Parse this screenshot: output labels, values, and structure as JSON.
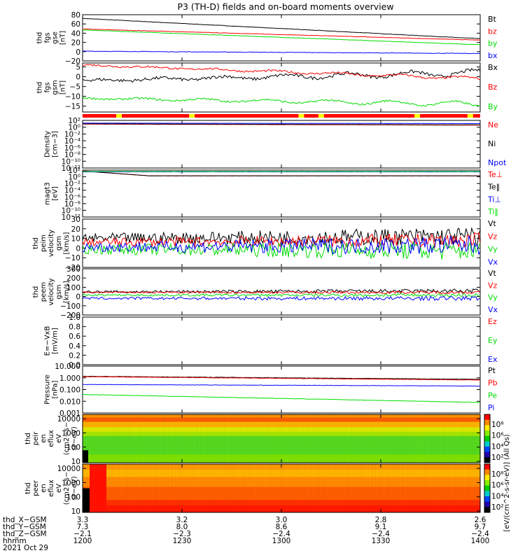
{
  "title": "P3 (TH-D) fields and on-board moments overview",
  "chart_data": [
    {
      "type": "line",
      "ylabel": [
        "thd",
        "fgs",
        "gse",
        "[nT]"
      ],
      "ylim": [
        -20,
        80
      ],
      "yticks": [
        {
          "v": 80,
          "label": "80"
        },
        {
          "v": 60,
          "label": "60"
        },
        {
          "v": 40,
          "label": "40"
        },
        {
          "v": 20,
          "label": "20"
        },
        {
          "v": 0,
          "label": "0"
        },
        {
          "v": -20,
          "label": "−20"
        }
      ],
      "series": [
        {
          "name": "Bt",
          "color": "#000000",
          "start": 72,
          "end": 28,
          "noise": 0.4
        },
        {
          "name": "bz",
          "color": "#ff0000",
          "start": 49,
          "end": 25,
          "noise": 0.4
        },
        {
          "name": "by",
          "color": "#00dd00",
          "start": 47,
          "end": 15,
          "noise": 0.4
        },
        {
          "name": "bx",
          "color": "#0000ff",
          "start": 1,
          "end": -4,
          "noise": 0.5
        }
      ]
    },
    {
      "type": "line",
      "ylabel": [
        "thd",
        "fgs",
        "gsm",
        "[nT]"
      ],
      "ylim": [
        -18,
        7
      ],
      "yticks": [
        {
          "v": 5,
          "label": "5"
        },
        {
          "v": 0,
          "label": "0"
        },
        {
          "v": -5,
          "label": "−5"
        },
        {
          "v": -10,
          "label": "−10"
        },
        {
          "v": -15,
          "label": "−15"
        }
      ],
      "series": [
        {
          "name": "Bx",
          "color": "#000000",
          "start": -2,
          "end": 2,
          "noise": 0.8,
          "wave": 1.2
        },
        {
          "name": "Bz",
          "color": "#ff0000",
          "start": 6,
          "end": -1,
          "noise": 0.5,
          "wave": 0.6
        },
        {
          "name": "By",
          "color": "#00dd00",
          "start": -11,
          "end": -14,
          "noise": 0.5,
          "wave": 1.0
        }
      ],
      "mode_bar": {
        "color": "#ff0000",
        "flag_color": "#ffff00",
        "flags": [
          "12:11",
          "12:33",
          "13:06",
          "13:12",
          "13:41",
          "13:57"
        ]
      }
    },
    {
      "type": "line",
      "ylabel": [
        "Density",
        "[cm−3]"
      ],
      "yscale": "log",
      "ylim": [
        1e-12,
        100
      ],
      "yticks": [
        {
          "v": 100,
          "label": "10²"
        },
        {
          "v": 1,
          "label": "10⁰"
        },
        {
          "v": 0.01,
          "label": "10⁻²"
        },
        {
          "v": 0.0001,
          "label": "10⁻⁴"
        },
        {
          "v": 1e-06,
          "label": "10⁻⁶"
        },
        {
          "v": 1e-08,
          "label": "10⁻⁸"
        },
        {
          "v": 1e-10,
          "label": "10⁻¹⁰"
        },
        {
          "v": 1e-12,
          "label": "10⁻¹²"
        }
      ],
      "series": [
        {
          "name": "Ne",
          "color": "#ff0000",
          "start": 8,
          "end": 4
        },
        {
          "name": "Ni",
          "color": "#000000",
          "start": 10,
          "end": 5
        },
        {
          "name": "Npot",
          "color": "#0000ff",
          "start": 16,
          "end": 12
        }
      ]
    },
    {
      "type": "line",
      "ylabel": [
        "magt3",
        "[eV]"
      ],
      "yscale": "log",
      "ylim": [
        1e-12,
        100
      ],
      "yticks": [
        {
          "v": 100,
          "label": "10²"
        },
        {
          "v": 1,
          "label": "10⁰"
        },
        {
          "v": 0.01,
          "label": "10⁻²"
        },
        {
          "v": 0.0001,
          "label": "10⁻⁴"
        },
        {
          "v": 1e-06,
          "label": "10⁻⁶"
        },
        {
          "v": 1e-08,
          "label": "10⁻⁸"
        },
        {
          "v": 1e-10,
          "label": "10⁻¹⁰"
        },
        {
          "v": 1e-12,
          "label": "10⁻¹²"
        }
      ],
      "series": [
        {
          "name": "Te⊥",
          "color": "#ff0000",
          "start": 60,
          "end": 2
        },
        {
          "name": "Te‖",
          "color": "#000000",
          "start": 50,
          "end": 2
        },
        {
          "name": "Ti⊥",
          "color": "#0000ff",
          "start": 30,
          "end": 30
        },
        {
          "name": "Ti‖",
          "color": "#00dd00",
          "start": 40,
          "end": 40
        }
      ]
    },
    {
      "type": "line",
      "ylabel": [
        "thd",
        "peim",
        "velocity",
        "gsm",
        "[km/s]"
      ],
      "ylim": [
        -20,
        30
      ],
      "yticks": [
        {
          "v": 30,
          "label": "30"
        },
        {
          "v": 20,
          "label": "20"
        },
        {
          "v": 10,
          "label": "10"
        },
        {
          "v": 0,
          "label": "0"
        },
        {
          "v": -10,
          "label": "−10"
        },
        {
          "v": -20,
          "label": "−20"
        }
      ],
      "series": [
        {
          "name": "Vt",
          "color": "#000000",
          "start": 10,
          "end": 12,
          "noise": 5
        },
        {
          "name": "Vz",
          "color": "#ff0000",
          "start": 6,
          "end": 8,
          "noise": 4
        },
        {
          "name": "Vy",
          "color": "#00dd00",
          "start": -1,
          "end": -3,
          "noise": 5
        },
        {
          "name": "Vx",
          "color": "#0000ff",
          "start": 1,
          "end": 3,
          "noise": 5
        }
      ]
    },
    {
      "type": "line",
      "ylabel": [
        "thd",
        "peem",
        "velocity",
        "gsm",
        "[km/s]"
      ],
      "ylim": [
        -200,
        300
      ],
      "yticks": [
        {
          "v": 300,
          "label": "300"
        },
        {
          "v": 200,
          "label": "200"
        },
        {
          "v": 100,
          "label": "100"
        },
        {
          "v": 0,
          "label": "0"
        },
        {
          "v": -100,
          "label": "−100"
        },
        {
          "v": -200,
          "label": "−200"
        }
      ],
      "series": [
        {
          "name": "Vt",
          "color": "#000000",
          "start": 50,
          "end": 60,
          "noise": 12
        },
        {
          "name": "Vz",
          "color": "#ff0000",
          "start": 45,
          "end": 45,
          "noise": 8
        },
        {
          "name": "Vy",
          "color": "#00dd00",
          "start": 15,
          "end": 15,
          "noise": 10
        },
        {
          "name": "Vx",
          "color": "#0000ff",
          "start": -20,
          "end": -20,
          "noise": 12
        }
      ]
    },
    {
      "type": "line",
      "ylabel": [
        "E=−VxB",
        "[mV/m]"
      ],
      "ylim": [
        0,
        1
      ],
      "yticks": [
        {
          "v": 1.0,
          "label": "1.0"
        },
        {
          "v": 0.8,
          "label": "0.8"
        },
        {
          "v": 0.6,
          "label": "0.6"
        },
        {
          "v": 0.4,
          "label": "0.4"
        },
        {
          "v": 0.2,
          "label": "0.2"
        },
        {
          "v": 0.0,
          "label": "0.0"
        }
      ],
      "series": [
        {
          "name": "Ez",
          "color": "#ff0000"
        },
        {
          "name": "Ey",
          "color": "#00dd00"
        },
        {
          "name": "Ex",
          "color": "#0000ff"
        }
      ]
    },
    {
      "type": "line",
      "ylabel": [
        "Pressure",
        "[nPa]"
      ],
      "yscale": "log",
      "ylim": [
        0.001,
        10
      ],
      "yticks": [
        {
          "v": 10,
          "label": "10.000"
        },
        {
          "v": 1,
          "label": "1.000"
        },
        {
          "v": 0.1,
          "label": "0.100"
        },
        {
          "v": 0.01,
          "label": "0.010"
        },
        {
          "v": 0.001,
          "label": "0.001"
        }
      ],
      "series": [
        {
          "name": "Pt",
          "color": "#000000",
          "start": 1.35,
          "end": 0.75
        },
        {
          "name": "Pb",
          "color": "#ff0000",
          "start": 1.25,
          "end": 0.65
        },
        {
          "name": "Pe",
          "color": "#00dd00",
          "start": 0.038,
          "end": 0.008
        },
        {
          "name": "Pi",
          "color": "#0000ff",
          "start": 0.27,
          "end": 0.2
        }
      ]
    },
    {
      "type": "heatmap",
      "ylabel": [
        "thd",
        "peir",
        "en",
        "eflux",
        "eV",
        "(cm2−s−",
        "sr−eV)"
      ],
      "yscale": "log",
      "ylim": [
        8,
        20000
      ],
      "yticks": [
        {
          "v": 10000,
          "label": "10000"
        },
        {
          "v": 1000,
          "label": "1000"
        },
        {
          "v": 100,
          "label": "100"
        },
        {
          "v": 10,
          "label": "10"
        }
      ],
      "bands": [
        {
          "from": 20000,
          "to": 12000,
          "color": "#ff9000"
        },
        {
          "from": 12000,
          "to": 6000,
          "color": "#ff5a00"
        },
        {
          "from": 6000,
          "to": 2500,
          "color": "#ffb000"
        },
        {
          "from": 2500,
          "to": 1200,
          "color": "#dfe800"
        },
        {
          "from": 1200,
          "to": 600,
          "color": "#a8e400"
        },
        {
          "from": 600,
          "to": 30,
          "color": "#56d820"
        },
        {
          "from": 30,
          "to": 8,
          "color": "#7fe000"
        }
      ],
      "colorbar": {
        "ticks": [
          "10⁸",
          "10⁶",
          "10⁴",
          "10²"
        ]
      }
    },
    {
      "type": "heatmap",
      "ylabel": [
        "thd",
        "peer",
        "en",
        "eflux",
        "eV",
        "(cm2−s−",
        "sr−eV)"
      ],
      "yscale": "log",
      "ylim": [
        8,
        20000
      ],
      "yticks": [
        {
          "v": 10000,
          "label": "10000"
        },
        {
          "v": 1000,
          "label": "1000"
        },
        {
          "v": 100,
          "label": "100"
        },
        {
          "v": 10,
          "label": "10"
        }
      ],
      "bands": [
        {
          "from": 20000,
          "to": 8000,
          "color": "#ff9a00"
        },
        {
          "from": 8000,
          "to": 2500,
          "color": "#ffb800"
        },
        {
          "from": 2500,
          "to": 500,
          "color": "#ff8c00"
        },
        {
          "from": 500,
          "to": 60,
          "color": "#ff5e00"
        },
        {
          "from": 60,
          "to": 25,
          "color": "#ff3000"
        },
        {
          "from": 25,
          "to": 8,
          "color": "#ff1800"
        }
      ],
      "colorbar": {
        "ticks": [
          "10⁸",
          "10⁶",
          "10⁴",
          "10²"
        ]
      }
    }
  ],
  "colorbar_label": "[eV/(cm^2-s-sr-eV)] (All Qs)",
  "xaxis": {
    "rows": [
      {
        "label": "thd_X−GSM",
        "values": [
          "3.3",
          "3.2",
          "3.0",
          "2.8",
          "2.6"
        ]
      },
      {
        "label": "thd_Y−GSM",
        "values": [
          "7.3",
          "8.0",
          "8.6",
          "9.1",
          "9.7"
        ]
      },
      {
        "label": "thd_Z−GSM",
        "values": [
          "−2.1",
          "−2.3",
          "−2.4",
          "−2.4",
          "−2.4"
        ]
      },
      {
        "label": "hhmm",
        "values": [
          "1200",
          "1230",
          "1300",
          "1330",
          "1400"
        ]
      }
    ],
    "date": "2021 Oct 29",
    "times": [
      "12:00",
      "12:30",
      "13:00",
      "13:30",
      "14:00"
    ]
  }
}
